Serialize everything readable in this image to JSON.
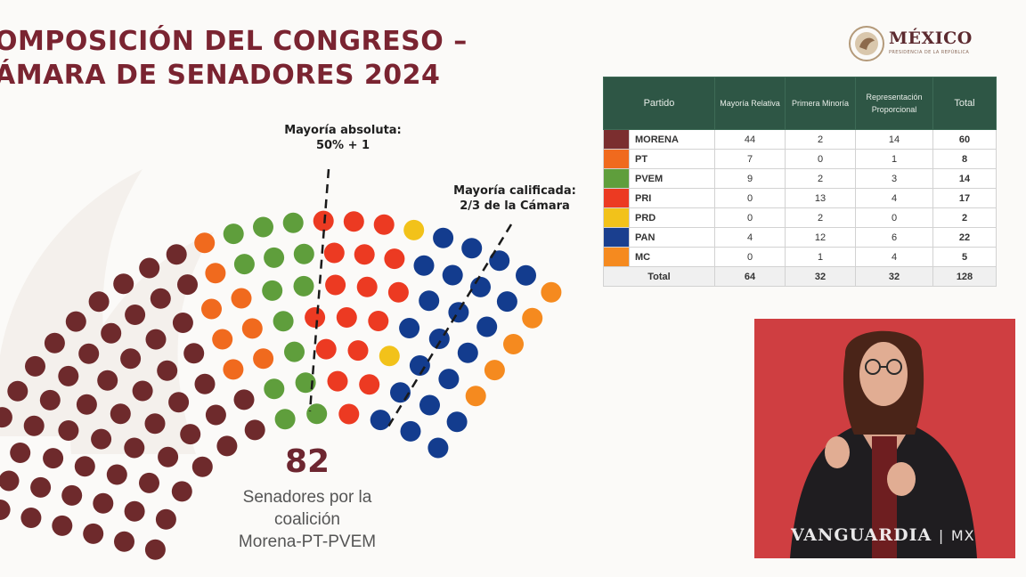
{
  "header": {
    "title_line1": "OMPOSICIÓN DEL CONGRESO –",
    "title_line2": "ÁMARA DE SENADORES 2024",
    "logo_name": "MÉXICO",
    "logo_sub": "PRESIDENCIA DE LA REPÚBLICA"
  },
  "colors": {
    "title": "#7a2431",
    "table_header": "#2e5645",
    "interpreter_bg": "#cf3e41"
  },
  "annotations": {
    "absolute_majority_l1": "Mayoría absoluta:",
    "absolute_majority_l2": "50% + 1",
    "qualified_majority_l1": "Mayoría calificada:",
    "qualified_majority_l2": "2/3 de la Cámara"
  },
  "coalition": {
    "number": "82",
    "label_l1": "Senadores por la",
    "label_l2": "coalición",
    "label_l3": "Morena-PT-PVEM"
  },
  "chart_data": [
    {
      "type": "parliament",
      "total_seats": 128,
      "series": [
        {
          "name": "MORENA",
          "value": 60,
          "color": "#6e2a2c"
        },
        {
          "name": "PT",
          "value": 8,
          "color": "#f06a1e"
        },
        {
          "name": "PVEM",
          "value": 14,
          "color": "#5f9e3c"
        },
        {
          "name": "PRI",
          "value": 17,
          "color": "#ec3a22"
        },
        {
          "name": "PRD",
          "value": 2,
          "color": "#f2c21a"
        },
        {
          "name": "PAN",
          "value": 22,
          "color": "#133c8e"
        },
        {
          "name": "MC",
          "value": 5,
          "color": "#f58a1f"
        }
      ],
      "thresholds": [
        {
          "label": "Mayoría absoluta: 50% + 1",
          "seats": 65
        },
        {
          "label": "Mayoría calificada: 2/3 de la Cámara",
          "seats": 86
        }
      ]
    },
    {
      "type": "table",
      "columns": [
        "Partido",
        "Mayoría Relativa",
        "Primera Minoría",
        "Representación Proporcional",
        "Total"
      ],
      "rows": [
        {
          "party": "MORENA",
          "color": "#7b2e2f",
          "values": [
            "44",
            "2",
            "14",
            "60"
          ]
        },
        {
          "party": "PT",
          "color": "#f06a1e",
          "values": [
            "7",
            "0",
            "1",
            "8"
          ]
        },
        {
          "party": "PVEM",
          "color": "#5f9e3c",
          "values": [
            "9",
            "2",
            "3",
            "14"
          ]
        },
        {
          "party": "PRI",
          "color": "#ec3a22",
          "values": [
            "0",
            "13",
            "4",
            "17"
          ]
        },
        {
          "party": "PRD",
          "color": "#f2c21a",
          "values": [
            "0",
            "2",
            "0",
            "2"
          ]
        },
        {
          "party": "PAN",
          "color": "#1a3f8f",
          "values": [
            "4",
            "12",
            "6",
            "22"
          ]
        },
        {
          "party": "MC",
          "color": "#f58a1f",
          "values": [
            "0",
            "1",
            "4",
            "5"
          ]
        }
      ],
      "total_row": {
        "label": "Total",
        "values": [
          "64",
          "32",
          "32",
          "128"
        ]
      }
    }
  ],
  "watermark": {
    "brand": "VANGUARDIA",
    "suffix": "MX"
  }
}
